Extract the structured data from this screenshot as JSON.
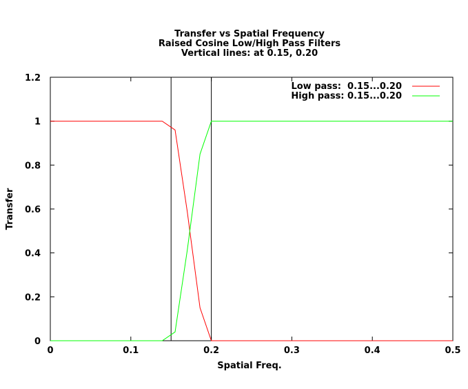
{
  "chart_data": {
    "type": "line",
    "title": [
      "Transfer vs Spatial Frequency",
      "Raised Cosine Low/High Pass Filters",
      "Vertical lines: at 0.15, 0.20"
    ],
    "xlabel": "Spatial Freq.",
    "ylabel": "Transfer",
    "xlim": [
      0,
      0.5
    ],
    "ylim": [
      0,
      1.2
    ],
    "xticks": [
      0,
      0.1,
      0.2,
      0.3,
      0.4,
      0.5
    ],
    "xtick_labels": [
      "0",
      "0.1",
      "0.2",
      "0.3",
      "0.4",
      "0.5"
    ],
    "yticks": [
      0,
      0.2,
      0.4,
      0.6,
      0.8,
      1,
      1.2
    ],
    "ytick_labels": [
      "0",
      "0.2",
      "0.4",
      "0.6",
      "0.8",
      "1",
      "1.2"
    ],
    "grid": false,
    "legend_position": "top-right",
    "vertical_lines": [
      0.15,
      0.2
    ],
    "series": [
      {
        "name": "Low pass:  0.15...0.20",
        "color": "#ff0000",
        "x": [
          0,
          0.139,
          0.155,
          0.17,
          0.186,
          0.2,
          0.5
        ],
        "y": [
          1,
          1,
          0.96,
          0.59,
          0.15,
          0,
          0
        ]
      },
      {
        "name": "High pass: 0.15...0.20",
        "color": "#00ff00",
        "x": [
          0,
          0.139,
          0.155,
          0.17,
          0.186,
          0.2,
          0.5
        ],
        "y": [
          0,
          0,
          0.04,
          0.41,
          0.85,
          1,
          1
        ]
      }
    ]
  }
}
